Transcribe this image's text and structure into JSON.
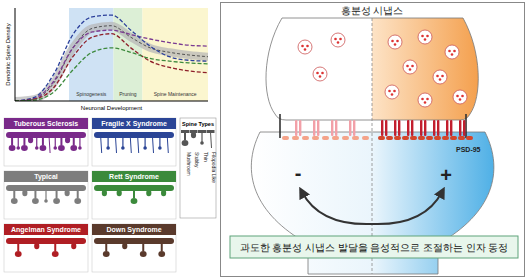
{
  "chart_data": {
    "type": "line",
    "xlabel": "Neuronal Development",
    "ylabel": "Dendritic Spine Density",
    "x": [
      0,
      1,
      2,
      3,
      4,
      5,
      6,
      7,
      8,
      9,
      10
    ],
    "xlim": [
      0,
      10
    ],
    "ylim": [
      0,
      1.05
    ],
    "xticks": [],
    "yticks": [],
    "tick_labels": false,
    "series": [
      {
        "color": "#b5b5b5",
        "line_style": "band",
        "values": [
          0,
          0.02,
          0.2,
          0.6,
          0.82,
          0.85,
          0.72,
          0.6,
          0.55,
          0.52,
          0.5
        ]
      },
      {
        "color": "#7a3a92",
        "line_style": "dashed",
        "values": [
          0,
          0.03,
          0.22,
          0.6,
          0.78,
          0.8,
          0.75,
          0.7,
          0.66,
          0.63,
          0.62
        ]
      },
      {
        "color": "#2b3f9a",
        "line_style": "dashed",
        "values": [
          0,
          0.04,
          0.3,
          0.75,
          0.95,
          0.97,
          0.8,
          0.62,
          0.5,
          0.46,
          0.45
        ]
      },
      {
        "color": "#8e1f2a",
        "line_style": "dashed",
        "values": [
          0,
          0.02,
          0.15,
          0.5,
          0.72,
          0.76,
          0.6,
          0.45,
          0.38,
          0.34,
          0.32
        ]
      },
      {
        "color": "#3d8a3d",
        "line_style": "dashed",
        "values": [
          0,
          0.01,
          0.1,
          0.35,
          0.55,
          0.6,
          0.55,
          0.48,
          0.45,
          0.43,
          0.42
        ]
      }
    ],
    "regions": [
      {
        "label": "Spinogenesis",
        "from": 2.8,
        "to": 5.1,
        "color": "#cfe2f4"
      },
      {
        "label": "Pruning",
        "from": 5.1,
        "to": 6.6,
        "color": "#dcefd6"
      },
      {
        "label": "Spine Maintenance",
        "from": 6.6,
        "to": 10,
        "color": "#fbf6cf"
      }
    ]
  },
  "spine_panel": {
    "conditions": [
      {
        "label": "Tuberous Sclerosis",
        "color": "#7a2a8a"
      },
      {
        "label": "Fragile X Syndrome",
        "color": "#2b4596"
      },
      {
        "label": "Typical",
        "color": "#7d7d7d"
      },
      {
        "label": "Rett Syndrome",
        "color": "#3b8a3b"
      },
      {
        "label": "Angelman Syndrome",
        "color": "#b01e24"
      },
      {
        "label": "Down Syndrome",
        "color": "#5a3a2c"
      }
    ],
    "spine_types": {
      "title": "Spine Types",
      "types": [
        "Mushroom",
        "Stubby",
        "Thin",
        "Filopodia Like"
      ]
    }
  },
  "synapse": {
    "title": "흥분성 시냅스",
    "protein": "PSD-95",
    "negative": "-",
    "positive": "+",
    "caption": "과도한 흥분성 시냅스 발달을 음성적으로 조절하는 인자 동정"
  }
}
